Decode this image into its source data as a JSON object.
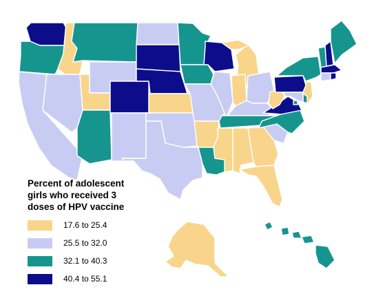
{
  "legend": {
    "title_lines": [
      "Percent of adolescent",
      "girls who received 3",
      "doses of HPV vaccine"
    ],
    "bins": [
      {
        "label": "17.6 to 25.4",
        "color": "#f8d58b"
      },
      {
        "label": "25.5 to 32.0",
        "color": "#c9ccf2"
      },
      {
        "label": "32.1 to 40.3",
        "color": "#16958f"
      },
      {
        "label": "40.4 to 55.1",
        "color": "#0d0d8c"
      }
    ]
  },
  "states": [
    {
      "id": "WA",
      "bin": 3
    },
    {
      "id": "OR",
      "bin": 2
    },
    {
      "id": "CA",
      "bin": 1
    },
    {
      "id": "ID",
      "bin": 0
    },
    {
      "id": "NV",
      "bin": 1
    },
    {
      "id": "MT",
      "bin": 2
    },
    {
      "id": "WY",
      "bin": 1
    },
    {
      "id": "UT",
      "bin": 0
    },
    {
      "id": "AZ",
      "bin": 2
    },
    {
      "id": "CO",
      "bin": 3
    },
    {
      "id": "NM",
      "bin": 1
    },
    {
      "id": "ND",
      "bin": 1
    },
    {
      "id": "SD",
      "bin": 3
    },
    {
      "id": "NE",
      "bin": 3
    },
    {
      "id": "KS",
      "bin": 0
    },
    {
      "id": "OK",
      "bin": 1
    },
    {
      "id": "TX",
      "bin": 1
    },
    {
      "id": "MN",
      "bin": 2
    },
    {
      "id": "IA",
      "bin": 2
    },
    {
      "id": "MO",
      "bin": 1
    },
    {
      "id": "AR",
      "bin": 0
    },
    {
      "id": "LA",
      "bin": 2
    },
    {
      "id": "WI",
      "bin": 3
    },
    {
      "id": "IL",
      "bin": 1
    },
    {
      "id": "MI",
      "bin": 0
    },
    {
      "id": "IN",
      "bin": 0
    },
    {
      "id": "OH",
      "bin": 1
    },
    {
      "id": "KY",
      "bin": 1
    },
    {
      "id": "TN",
      "bin": 2
    },
    {
      "id": "MS",
      "bin": 0
    },
    {
      "id": "AL",
      "bin": 0
    },
    {
      "id": "GA",
      "bin": 0
    },
    {
      "id": "FL",
      "bin": 0
    },
    {
      "id": "SC",
      "bin": 1
    },
    {
      "id": "NC",
      "bin": 2
    },
    {
      "id": "VA",
      "bin": 3
    },
    {
      "id": "WV",
      "bin": 0
    },
    {
      "id": "PA",
      "bin": 3
    },
    {
      "id": "NY",
      "bin": 2
    },
    {
      "id": "VT",
      "bin": 2
    },
    {
      "id": "NH",
      "bin": 3
    },
    {
      "id": "ME",
      "bin": 2
    },
    {
      "id": "MA",
      "bin": 3
    },
    {
      "id": "CT",
      "bin": 1
    },
    {
      "id": "RI",
      "bin": 3
    },
    {
      "id": "NJ",
      "bin": 0
    },
    {
      "id": "DE",
      "bin": 2
    },
    {
      "id": "MD",
      "bin": 1
    },
    {
      "id": "DC",
      "bin": 2
    },
    {
      "id": "AK",
      "bin": 0
    },
    {
      "id": "HI",
      "bin": 2
    }
  ]
}
